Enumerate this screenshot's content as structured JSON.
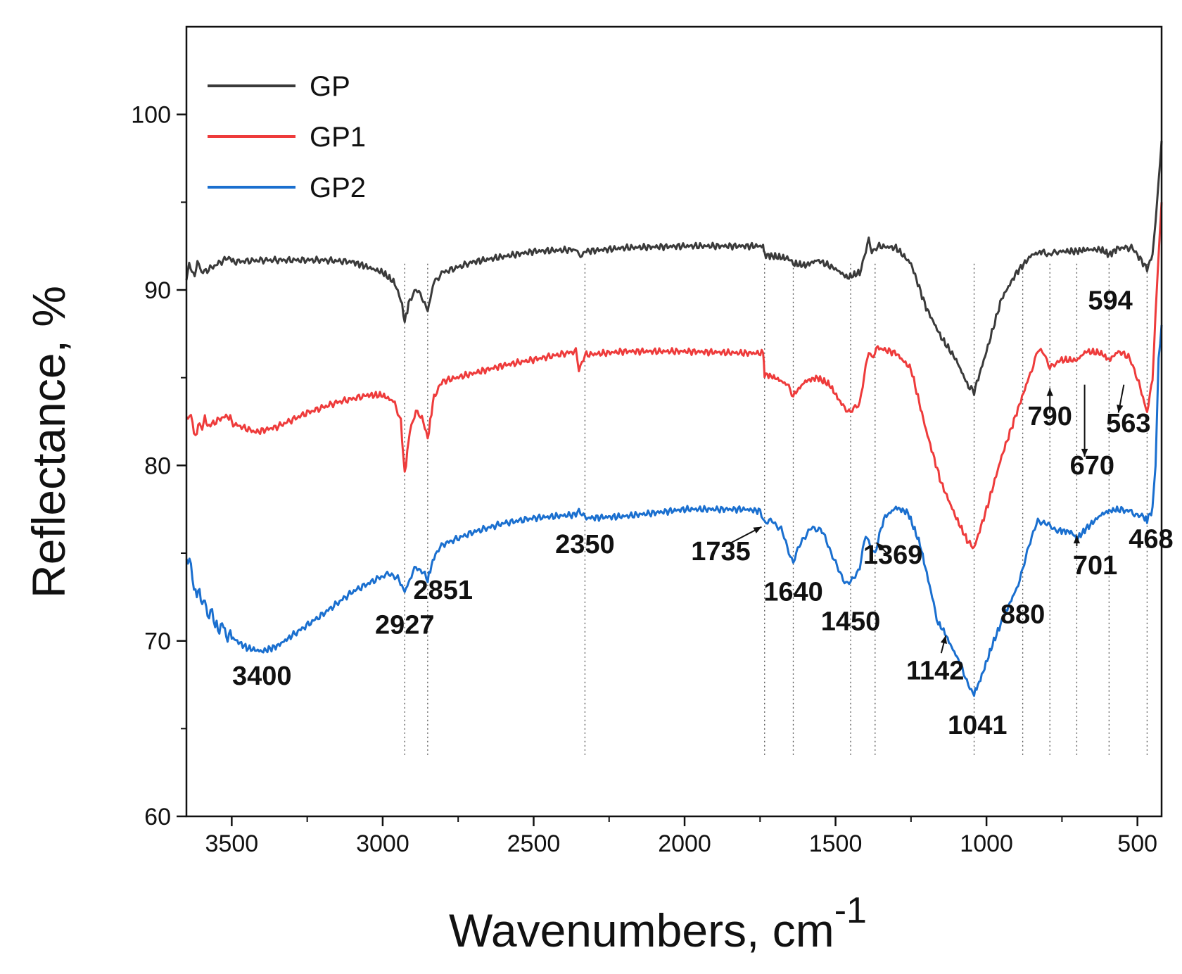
{
  "chart_data": {
    "type": "line",
    "title": "",
    "xlabel": "Wavenumbers, cm",
    "xlabel_superscript": "-1",
    "ylabel": "Reflectance, %",
    "xlim": [
      3650,
      420
    ],
    "ylim": [
      60,
      105
    ],
    "x_ticks": [
      3500,
      3000,
      2500,
      2000,
      1500,
      1000,
      500
    ],
    "x_tick_labels": [
      "3500",
      "3000",
      "2500",
      "2000",
      "1500",
      "1000",
      "500"
    ],
    "y_ticks": [
      60,
      70,
      80,
      90,
      100
    ],
    "y_tick_labels": [
      "60",
      "70",
      "80",
      "90",
      "100"
    ],
    "legend_position": "top-left",
    "series": [
      {
        "name": "GP",
        "color": "#3a3a3a",
        "points": [
          [
            3650,
            91.0
          ],
          [
            3600,
            91.3
          ],
          [
            3500,
            91.6
          ],
          [
            3400,
            91.7
          ],
          [
            3300,
            91.7
          ],
          [
            3200,
            91.7
          ],
          [
            3100,
            91.6
          ],
          [
            3050,
            91.3
          ],
          [
            3000,
            91.0
          ],
          [
            2960,
            90.4
          ],
          [
            2940,
            89.5
          ],
          [
            2927,
            88.2
          ],
          [
            2910,
            89.5
          ],
          [
            2890,
            90.0
          ],
          [
            2870,
            89.6
          ],
          [
            2851,
            88.8
          ],
          [
            2830,
            90.5
          ],
          [
            2800,
            91.0
          ],
          [
            2700,
            91.6
          ],
          [
            2500,
            92.2
          ],
          [
            2360,
            92.3
          ],
          [
            2350,
            91.9
          ],
          [
            2330,
            92.2
          ],
          [
            2200,
            92.4
          ],
          [
            2000,
            92.5
          ],
          [
            1800,
            92.5
          ],
          [
            1740,
            92.5
          ],
          [
            1735,
            92.0
          ],
          [
            1700,
            91.9
          ],
          [
            1660,
            91.8
          ],
          [
            1640,
            91.5
          ],
          [
            1600,
            91.4
          ],
          [
            1560,
            91.7
          ],
          [
            1500,
            91.2
          ],
          [
            1460,
            90.7
          ],
          [
            1420,
            91.0
          ],
          [
            1390,
            92.8
          ],
          [
            1380,
            92.2
          ],
          [
            1360,
            92.5
          ],
          [
            1300,
            92.4
          ],
          [
            1250,
            91.5
          ],
          [
            1200,
            89.0
          ],
          [
            1150,
            87.3
          ],
          [
            1100,
            86.0
          ],
          [
            1060,
            84.5
          ],
          [
            1041,
            84.2
          ],
          [
            1000,
            86.5
          ],
          [
            950,
            89.5
          ],
          [
            900,
            91.0
          ],
          [
            850,
            92.0
          ],
          [
            810,
            92.2
          ],
          [
            790,
            92.0
          ],
          [
            760,
            92.2
          ],
          [
            701,
            92.2
          ],
          [
            670,
            92.3
          ],
          [
            620,
            92.3
          ],
          [
            594,
            92.0
          ],
          [
            563,
            92.4
          ],
          [
            520,
            92.4
          ],
          [
            500,
            92.0
          ],
          [
            468,
            91.2
          ],
          [
            450,
            92.0
          ],
          [
            430,
            96.0
          ],
          [
            420,
            98.5
          ]
        ]
      },
      {
        "name": "GP1",
        "color": "#ee3b3b",
        "points": [
          [
            3650,
            83.0
          ],
          [
            3620,
            82.0
          ],
          [
            3580,
            82.6
          ],
          [
            3500,
            82.4
          ],
          [
            3420,
            81.9
          ],
          [
            3350,
            82.2
          ],
          [
            3250,
            83.0
          ],
          [
            3150,
            83.6
          ],
          [
            3050,
            84.0
          ],
          [
            3000,
            84.0
          ],
          [
            2960,
            83.6
          ],
          [
            2940,
            82.5
          ],
          [
            2927,
            79.5
          ],
          [
            2910,
            82.0
          ],
          [
            2890,
            83.0
          ],
          [
            2870,
            82.8
          ],
          [
            2851,
            81.5
          ],
          [
            2830,
            84.0
          ],
          [
            2800,
            84.8
          ],
          [
            2600,
            85.7
          ],
          [
            2450,
            86.2
          ],
          [
            2360,
            86.5
          ],
          [
            2350,
            85.5
          ],
          [
            2330,
            86.3
          ],
          [
            2200,
            86.5
          ],
          [
            2000,
            86.5
          ],
          [
            1800,
            86.4
          ],
          [
            1740,
            86.4
          ],
          [
            1735,
            85.2
          ],
          [
            1700,
            85.0
          ],
          [
            1660,
            84.6
          ],
          [
            1640,
            84.0
          ],
          [
            1600,
            84.8
          ],
          [
            1560,
            85.0
          ],
          [
            1520,
            84.6
          ],
          [
            1480,
            83.5
          ],
          [
            1450,
            83.0
          ],
          [
            1420,
            83.6
          ],
          [
            1390,
            86.5
          ],
          [
            1380,
            86.2
          ],
          [
            1360,
            86.7
          ],
          [
            1300,
            86.4
          ],
          [
            1250,
            85.5
          ],
          [
            1200,
            82.0
          ],
          [
            1150,
            79.0
          ],
          [
            1100,
            77.0
          ],
          [
            1060,
            75.6
          ],
          [
            1041,
            75.3
          ],
          [
            1000,
            77.5
          ],
          [
            950,
            80.5
          ],
          [
            900,
            83.0
          ],
          [
            860,
            85.0
          ],
          [
            830,
            86.5
          ],
          [
            810,
            86.5
          ],
          [
            790,
            85.5
          ],
          [
            760,
            86.0
          ],
          [
            701,
            86.0
          ],
          [
            670,
            86.5
          ],
          [
            620,
            86.4
          ],
          [
            594,
            86.0
          ],
          [
            563,
            86.5
          ],
          [
            530,
            86.2
          ],
          [
            500,
            85.0
          ],
          [
            468,
            83.0
          ],
          [
            450,
            85.0
          ],
          [
            430,
            92.0
          ],
          [
            420,
            95.0
          ]
        ]
      },
      {
        "name": "GP2",
        "color": "#1a6fcf",
        "points": [
          [
            3650,
            75.0
          ],
          [
            3620,
            73.0
          ],
          [
            3580,
            71.8
          ],
          [
            3550,
            71.0
          ],
          [
            3500,
            70.2
          ],
          [
            3450,
            69.6
          ],
          [
            3400,
            69.4
          ],
          [
            3350,
            69.7
          ],
          [
            3300,
            70.3
          ],
          [
            3200,
            71.5
          ],
          [
            3100,
            72.8
          ],
          [
            3000,
            73.7
          ],
          [
            2970,
            73.8
          ],
          [
            2950,
            73.6
          ],
          [
            2927,
            72.8
          ],
          [
            2910,
            73.5
          ],
          [
            2890,
            74.2
          ],
          [
            2870,
            74.0
          ],
          [
            2851,
            73.5
          ],
          [
            2830,
            74.8
          ],
          [
            2800,
            75.5
          ],
          [
            2700,
            76.2
          ],
          [
            2600,
            76.7
          ],
          [
            2500,
            77.0
          ],
          [
            2360,
            77.2
          ],
          [
            2350,
            77.5
          ],
          [
            2330,
            77.0
          ],
          [
            2200,
            77.1
          ],
          [
            2000,
            77.5
          ],
          [
            1800,
            77.5
          ],
          [
            1750,
            77.4
          ],
          [
            1735,
            76.8
          ],
          [
            1710,
            76.8
          ],
          [
            1680,
            76.4
          ],
          [
            1660,
            75.3
          ],
          [
            1640,
            74.5
          ],
          [
            1610,
            75.8
          ],
          [
            1580,
            76.4
          ],
          [
            1550,
            76.4
          ],
          [
            1520,
            75.3
          ],
          [
            1490,
            74.0
          ],
          [
            1465,
            73.3
          ],
          [
            1450,
            73.3
          ],
          [
            1420,
            74.2
          ],
          [
            1400,
            76.0
          ],
          [
            1385,
            75.5
          ],
          [
            1369,
            75.0
          ],
          [
            1340,
            77.0
          ],
          [
            1300,
            77.6
          ],
          [
            1260,
            77.3
          ],
          [
            1220,
            75.5
          ],
          [
            1180,
            72.5
          ],
          [
            1160,
            71.0
          ],
          [
            1142,
            70.6
          ],
          [
            1120,
            69.8
          ],
          [
            1080,
            68.5
          ],
          [
            1060,
            67.4
          ],
          [
            1041,
            67.0
          ],
          [
            1020,
            67.8
          ],
          [
            980,
            69.8
          ],
          [
            940,
            71.5
          ],
          [
            900,
            73.0
          ],
          [
            880,
            74.0
          ],
          [
            860,
            75.5
          ],
          [
            830,
            76.8
          ],
          [
            810,
            76.8
          ],
          [
            790,
            76.5
          ],
          [
            760,
            76.3
          ],
          [
            720,
            76.2
          ],
          [
            701,
            75.8
          ],
          [
            670,
            76.4
          ],
          [
            620,
            77.2
          ],
          [
            594,
            77.4
          ],
          [
            563,
            77.5
          ],
          [
            530,
            77.4
          ],
          [
            500,
            77.2
          ],
          [
            480,
            77.0
          ],
          [
            468,
            76.9
          ],
          [
            450,
            77.5
          ],
          [
            440,
            80.0
          ],
          [
            430,
            86.0
          ],
          [
            420,
            88.0
          ]
        ]
      }
    ],
    "annotations": [
      {
        "label": "3400",
        "x": 3400,
        "y": 67.5
      },
      {
        "label": "2927",
        "x": 2927,
        "y": 70.4
      },
      {
        "label": "2851",
        "x": 2800,
        "y": 72.4
      },
      {
        "label": "2350",
        "x": 2330,
        "y": 75.0
      },
      {
        "label": "1735",
        "x": 1880,
        "y": 74.6
      },
      {
        "label": "1640",
        "x": 1640,
        "y": 72.3
      },
      {
        "label": "1450",
        "x": 1450,
        "y": 70.6
      },
      {
        "label": "1369",
        "x": 1310,
        "y": 74.4
      },
      {
        "label": "1142",
        "x": 1170,
        "y": 67.8
      },
      {
        "label": "1041",
        "x": 1030,
        "y": 64.7
      },
      {
        "label": "880",
        "x": 880,
        "y": 71.0
      },
      {
        "label": "790",
        "x": 790,
        "y": 82.3
      },
      {
        "label": "670",
        "x": 650,
        "y": 79.5
      },
      {
        "label": "701",
        "x": 640,
        "y": 73.8
      },
      {
        "label": "594",
        "x": 590,
        "y": 88.9
      },
      {
        "label": "563",
        "x": 530,
        "y": 81.9
      },
      {
        "label": "468",
        "x": 455,
        "y": 75.3
      }
    ],
    "arrows": [
      {
        "from": [
          1845,
          75.6
        ],
        "to": [
          1745,
          76.5
        ]
      },
      {
        "from": [
          1330,
          75.0
        ],
        "to": [
          1365,
          75.6
        ]
      },
      {
        "from": [
          1150,
          69.3
        ],
        "to": [
          1135,
          70.3
        ]
      },
      {
        "from": [
          790,
          83.0
        ],
        "to": [
          790,
          84.4
        ]
      },
      {
        "from": [
          675,
          84.6
        ],
        "to": [
          675,
          80.5
        ]
      },
      {
        "from": [
          701,
          75.4
        ],
        "to": [
          701,
          76.0
        ]
      },
      {
        "from": [
          545,
          84.6
        ],
        "to": [
          563,
          83.0
        ]
      }
    ],
    "guide_lines": [
      2927,
      2851,
      2330,
      1735,
      1640,
      1450,
      1369,
      1041,
      880,
      790,
      701,
      594,
      468
    ]
  }
}
